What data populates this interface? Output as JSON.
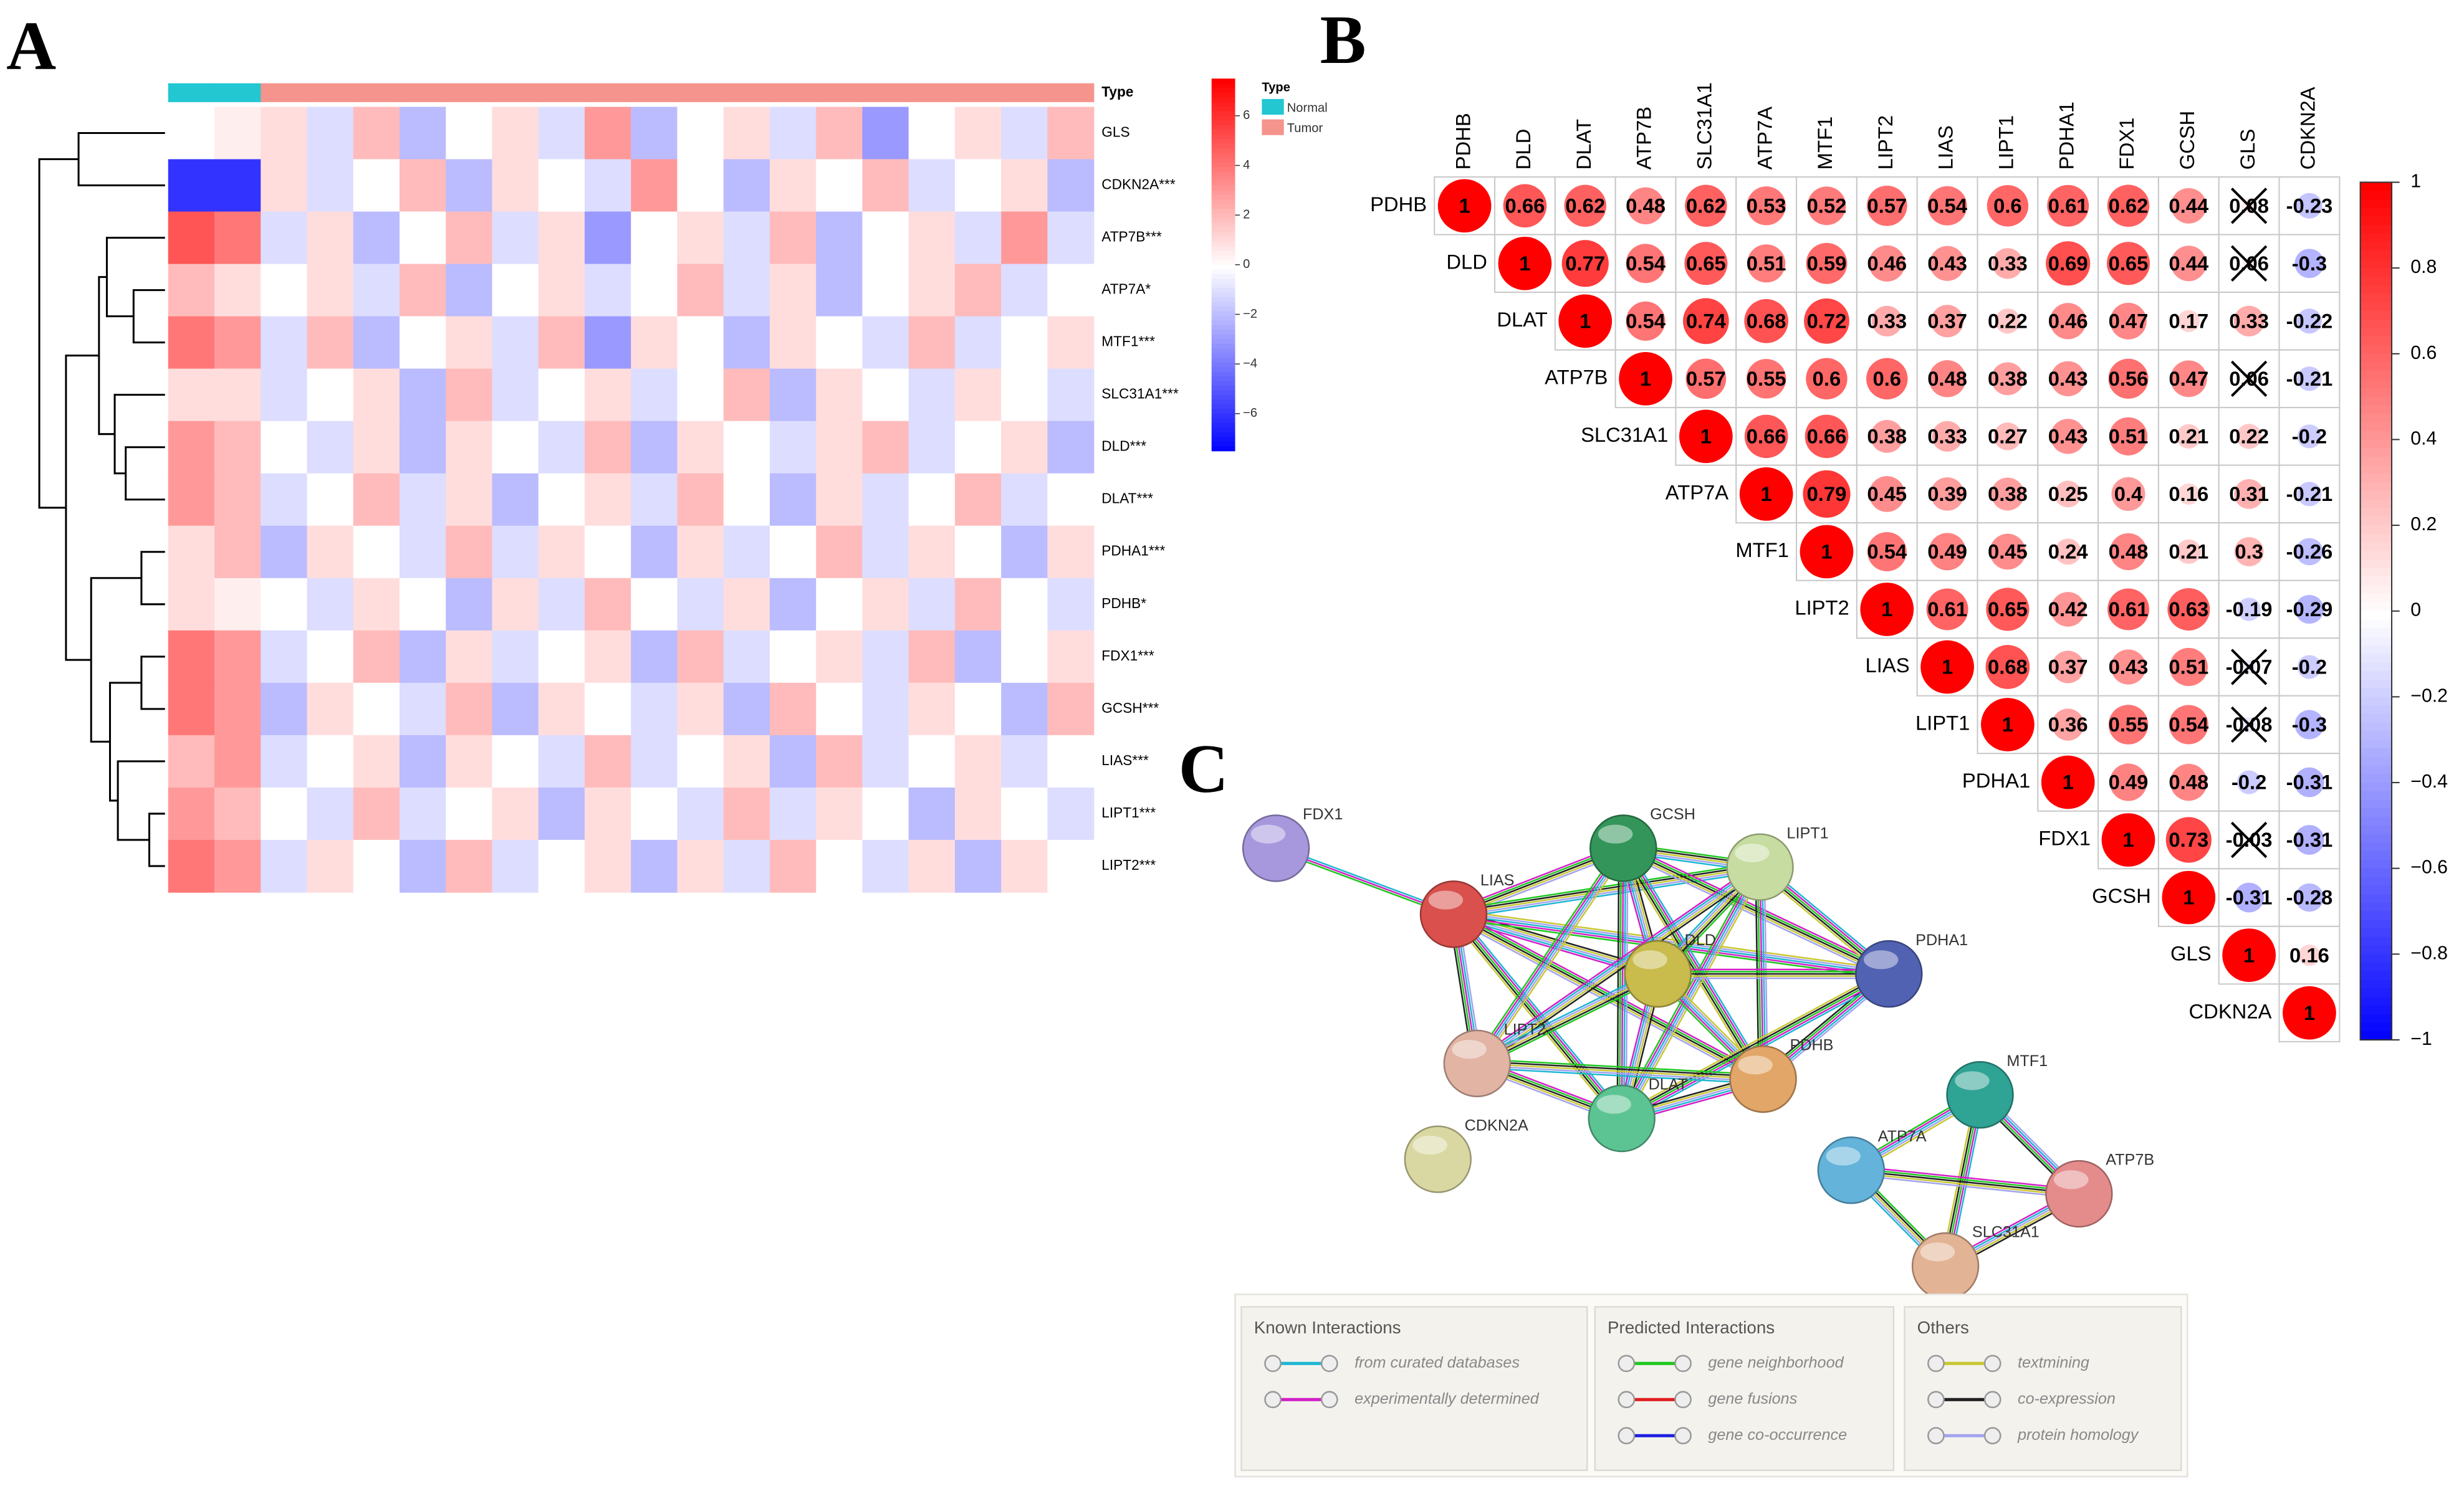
{
  "chart_data": [
    {
      "type": "heatmap",
      "panel_label": "A",
      "annotation_title": "Type",
      "legend_title": "Type",
      "legend": [
        {
          "name": "Normal",
          "color": "#22c7d2"
        },
        {
          "name": "Tumor",
          "color": "#f4948c"
        }
      ],
      "rows": [
        "GLS",
        "CDKN2A***",
        "ATP7B***",
        "ATP7A*",
        "MTF1***",
        "SLC31A1***",
        "DLD***",
        "DLAT***",
        "PDHA1***",
        "PDHB*",
        "FDX1***",
        "GCSH***",
        "LIAS***",
        "LIPT1***",
        "LIPT2***"
      ],
      "column_types": [
        "Normal",
        "Normal",
        "Tumor",
        "Tumor",
        "Tumor",
        "Tumor",
        "Tumor",
        "Tumor",
        "Tumor",
        "Tumor",
        "Tumor",
        "Tumor",
        "Tumor",
        "Tumor",
        "Tumor",
        "Tumor",
        "Tumor",
        "Tumor",
        "Tumor",
        "Tumor"
      ],
      "values": [
        [
          0,
          0.5,
          1,
          -1,
          2,
          -2,
          0,
          1,
          -1,
          3,
          -2,
          0,
          1,
          -1,
          2,
          -3,
          0,
          1,
          -1,
          2
        ],
        [
          -6,
          -6,
          1,
          -1,
          0,
          2,
          -2,
          1,
          0,
          -1,
          3,
          0,
          -2,
          1,
          0,
          2,
          -1,
          0,
          1,
          -2
        ],
        [
          5,
          4,
          -1,
          1,
          -2,
          0,
          2,
          -1,
          1,
          -3,
          0,
          1,
          -1,
          2,
          -2,
          0,
          1,
          -1,
          3,
          -1
        ],
        [
          2,
          1,
          0,
          1,
          -1,
          2,
          -2,
          0,
          1,
          -1,
          0,
          2,
          -1,
          1,
          -2,
          0,
          1,
          2,
          -1,
          0
        ],
        [
          4,
          3,
          -1,
          2,
          -2,
          0,
          1,
          -1,
          2,
          -3,
          1,
          0,
          -2,
          1,
          0,
          -1,
          2,
          -1,
          0,
          1
        ],
        [
          1,
          1,
          -1,
          0,
          1,
          -2,
          2,
          -1,
          0,
          1,
          -1,
          0,
          2,
          -2,
          1,
          0,
          -1,
          1,
          0,
          -1
        ],
        [
          3,
          2,
          0,
          -1,
          1,
          -2,
          1,
          0,
          -1,
          2,
          -2,
          1,
          0,
          -1,
          1,
          2,
          -1,
          0,
          1,
          -2
        ],
        [
          3,
          2,
          -1,
          0,
          2,
          -1,
          1,
          -2,
          0,
          1,
          -1,
          2,
          0,
          -2,
          1,
          -1,
          0,
          2,
          -1,
          0
        ],
        [
          1,
          2,
          -2,
          1,
          0,
          -1,
          2,
          -1,
          1,
          0,
          -2,
          1,
          -1,
          0,
          2,
          -1,
          1,
          0,
          -2,
          1
        ],
        [
          1,
          0.5,
          0,
          -1,
          1,
          0,
          -2,
          1,
          -1,
          2,
          0,
          -1,
          1,
          -2,
          0,
          1,
          -1,
          2,
          0,
          -1
        ],
        [
          4,
          3,
          -1,
          0,
          2,
          -2,
          1,
          -1,
          0,
          1,
          -2,
          2,
          -1,
          0,
          1,
          -1,
          2,
          -2,
          0,
          1
        ],
        [
          4,
          3,
          -2,
          1,
          0,
          -1,
          2,
          -2,
          1,
          0,
          -1,
          1,
          -2,
          2,
          0,
          -1,
          1,
          0,
          -2,
          2
        ],
        [
          2,
          3,
          -1,
          0,
          1,
          -2,
          1,
          0,
          -1,
          2,
          -1,
          0,
          1,
          -2,
          2,
          -1,
          0,
          1,
          -1,
          0
        ],
        [
          3,
          2,
          0,
          -1,
          2,
          -1,
          0,
          1,
          -2,
          1,
          0,
          -1,
          2,
          -1,
          1,
          0,
          -2,
          1,
          0,
          -1
        ],
        [
          4,
          3,
          -1,
          1,
          0,
          -2,
          2,
          -1,
          0,
          1,
          -2,
          1,
          -1,
          2,
          0,
          -1,
          1,
          -2,
          1,
          0
        ]
      ],
      "colors": [
        "#0000ff",
        "#ffffff",
        "#ff0000"
      ],
      "clim": [
        -7.5,
        7.5
      ],
      "cticks": [
        6,
        4,
        2,
        0,
        {
          "value": -2,
          "label": "−2"
        },
        {
          "value": -4,
          "label": "−4"
        },
        {
          "value": -6,
          "label": "−6"
        }
      ]
    },
    {
      "type": "corrplot",
      "panel_label": "B",
      "labels": [
        "PDHB",
        "DLD",
        "DLAT",
        "ATP7B",
        "SLC31A1",
        "ATP7A",
        "MTF1",
        "LIPT2",
        "LIAS",
        "LIPT1",
        "PDHA1",
        "FDX1",
        "GCSH",
        "GLS",
        "CDKN2A"
      ],
      "values": [
        [
          1,
          0.66,
          0.62,
          0.48,
          0.62,
          0.53,
          0.52,
          0.57,
          0.54,
          0.6,
          0.61,
          0.62,
          0.44,
          0.08,
          -0.23
        ],
        [
          1,
          0.77,
          0.54,
          0.65,
          0.51,
          0.59,
          0.46,
          0.43,
          0.33,
          0.69,
          0.65,
          0.44,
          0.06,
          -0.3
        ],
        [
          1,
          0.54,
          0.74,
          0.68,
          0.72,
          0.33,
          0.37,
          0.22,
          0.46,
          0.47,
          0.17,
          0.33,
          -0.22
        ],
        [
          1,
          0.57,
          0.55,
          0.6,
          0.6,
          0.48,
          0.38,
          0.43,
          0.56,
          0.47,
          0.06,
          -0.21
        ],
        [
          1,
          0.66,
          0.66,
          0.38,
          0.33,
          0.27,
          0.43,
          0.51,
          0.21,
          0.22,
          -0.2
        ],
        [
          1,
          0.79,
          0.45,
          0.39,
          0.38,
          0.25,
          0.4,
          0.16,
          0.31,
          -0.21
        ],
        [
          1,
          0.54,
          0.49,
          0.45,
          0.24,
          0.48,
          0.21,
          0.3,
          -0.26
        ],
        [
          1,
          0.61,
          0.65,
          0.42,
          0.61,
          0.63,
          -0.19,
          -0.29
        ],
        [
          1,
          0.68,
          0.37,
          0.43,
          0.51,
          -0.07,
          -0.2
        ],
        [
          1,
          0.36,
          0.55,
          0.54,
          -0.08,
          -0.3
        ],
        [
          1,
          0.49,
          0.48,
          -0.2,
          -0.31
        ],
        [
          1,
          0.73,
          -0.03,
          -0.31
        ],
        [
          1,
          -0.31,
          -0.28
        ],
        [
          1,
          0.16
        ],
        [
          1
        ]
      ],
      "crossed": [
        [
          0,
          13
        ],
        [
          1,
          13
        ],
        [
          3,
          13
        ],
        [
          8,
          13
        ],
        [
          9,
          13
        ],
        [
          11,
          13
        ]
      ],
      "colors": [
        "#0000ff",
        "#ffffff",
        "#ff0000"
      ],
      "clim": [
        -1,
        1
      ],
      "cticks": [
        1,
        0.8,
        0.6,
        0.4,
        0.2,
        0,
        {
          "value": -0.2,
          "label": "−0.2"
        },
        {
          "value": -0.4,
          "label": "−0.4"
        },
        {
          "value": -0.6,
          "label": "−0.6"
        },
        {
          "value": -0.8,
          "label": "−0.8"
        },
        {
          "value": -1,
          "label": "−1"
        }
      ]
    },
    {
      "type": "network",
      "panel_label": "C",
      "nodes": [
        {
          "label": "FDX1",
          "color": "#a797dd"
        },
        {
          "label": "LIAS",
          "color": "#d9504c"
        },
        {
          "label": "GCSH",
          "color": "#33955a"
        },
        {
          "label": "LIPT1",
          "color": "#c6dca0"
        },
        {
          "label": "DLD",
          "color": "#c9bb4c"
        },
        {
          "label": "PDHA1",
          "color": "#5262b2"
        },
        {
          "label": "LIPT2",
          "color": "#e2b4a4"
        },
        {
          "label": "DLAT",
          "color": "#5cc493"
        },
        {
          "label": "PDHB",
          "color": "#e2a668"
        },
        {
          "label": "CDKN2A",
          "color": "#d9d8a2"
        },
        {
          "label": "MTF1",
          "color": "#2fa394"
        },
        {
          "label": "ATP7A",
          "color": "#63b3da"
        },
        {
          "label": "ATP7B",
          "color": "#e48c8c"
        },
        {
          "label": "SLC31A1",
          "color": "#e2b394"
        }
      ],
      "legend_groups": [
        {
          "title": "Known Interactions",
          "items": [
            {
              "label": "from curated databases",
              "color": "#1fb7d2"
            },
            {
              "label": "experimentally determined",
              "color": "#d41fc8"
            }
          ]
        },
        {
          "title": "Predicted Interactions",
          "items": [
            {
              "label": "gene neighborhood",
              "color": "#1fc81f"
            },
            {
              "label": "gene fusions",
              "color": "#e01f1f"
            },
            {
              "label": "gene co-occurrence",
              "color": "#1f1fe0"
            }
          ]
        },
        {
          "title": "Others",
          "items": [
            {
              "label": "textmining",
              "color": "#c8c832"
            },
            {
              "label": "co-expression",
              "color": "#222222"
            },
            {
              "label": "protein homology",
              "color": "#a3a3f0"
            }
          ]
        }
      ]
    }
  ]
}
